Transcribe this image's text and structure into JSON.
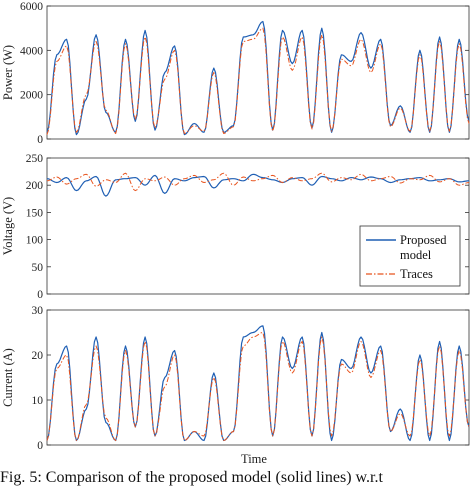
{
  "chart_data": [
    {
      "type": "line",
      "xlabel": "",
      "ylabel": "Power (W)",
      "ylim": [
        0,
        6000
      ],
      "yticks": [
        "0",
        "2000",
        "4000",
        "6000"
      ],
      "grid": false,
      "series": [
        {
          "name": "Proposed model",
          "color": "#1f5fb4",
          "style": "solid",
          "y": [
            300,
            3800,
            4500,
            200,
            1800,
            4700,
            1200,
            300,
            4500,
            800,
            4900,
            400,
            3000,
            4200,
            200,
            700,
            300,
            3200,
            300,
            600,
            4600,
            4700,
            5300,
            400,
            4900,
            3400,
            4900,
            500,
            5000,
            300,
            3800,
            3500,
            4800,
            3200,
            4500,
            600,
            1500,
            300,
            4000,
            300,
            4600,
            300,
            4500,
            800
          ]
        },
        {
          "name": "Traces",
          "color": "#e8541e",
          "style": "dashdot",
          "y": [
            200,
            3500,
            4200,
            300,
            2000,
            4400,
            1300,
            250,
            4300,
            900,
            4600,
            500,
            2700,
            4000,
            250,
            600,
            350,
            3000,
            250,
            550,
            4400,
            4500,
            5000,
            350,
            4600,
            3100,
            4600,
            450,
            4700,
            350,
            3600,
            3300,
            4500,
            3000,
            4300,
            550,
            1400,
            350,
            3800,
            350,
            4400,
            350,
            4300,
            700
          ]
        }
      ]
    },
    {
      "type": "line",
      "xlabel": "",
      "ylabel": "Voltage (V)",
      "ylim": [
        0,
        250
      ],
      "yticks": [
        "0",
        "50",
        "100",
        "150",
        "200",
        "250"
      ],
      "grid": false,
      "legend": {
        "position": "bottom-right",
        "entries": [
          "Proposed model",
          "Traces"
        ]
      },
      "series": [
        {
          "name": "Proposed model",
          "color": "#1f5fb4",
          "style": "solid",
          "y": [
            212,
            205,
            214,
            190,
            208,
            216,
            180,
            210,
            212,
            214,
            200,
            218,
            185,
            212,
            208,
            214,
            216,
            195,
            210,
            212,
            208,
            220,
            214,
            210,
            205,
            212,
            214,
            200,
            216,
            212,
            208,
            214,
            210,
            215,
            212,
            205,
            210,
            212,
            214,
            208,
            210,
            212,
            206,
            208
          ]
        },
        {
          "name": "Traces",
          "color": "#e8541e",
          "style": "dashdot",
          "y": [
            208,
            215,
            202,
            212,
            220,
            198,
            210,
            205,
            222,
            190,
            212,
            208,
            215,
            200,
            212,
            218,
            205,
            210,
            222,
            200,
            215,
            208,
            212,
            218,
            205,
            214,
            208,
            212,
            222,
            206,
            214,
            210,
            220,
            208,
            212,
            216,
            204,
            212,
            210,
            218,
            206,
            212,
            200,
            205
          ]
        }
      ]
    },
    {
      "type": "line",
      "xlabel": "Time",
      "ylabel": "Current (A)",
      "ylim": [
        0,
        30
      ],
      "yticks": [
        "0",
        "10",
        "20",
        "30"
      ],
      "grid": false,
      "series": [
        {
          "name": "Proposed model",
          "color": "#1f5fb4",
          "style": "solid",
          "y": [
            1,
            18,
            22,
            1,
            8,
            24,
            5,
            1,
            22,
            4,
            24,
            2,
            15,
            21,
            1,
            3,
            1,
            16,
            1,
            3,
            24,
            25,
            26.5,
            2,
            24,
            17,
            24,
            2,
            25,
            1,
            19,
            17,
            24,
            16,
            22,
            3,
            8,
            1,
            20,
            1,
            23,
            1,
            22,
            4
          ]
        },
        {
          "name": "Traces",
          "color": "#e8541e",
          "style": "dashdot",
          "y": [
            1,
            17,
            20,
            1,
            9,
            22,
            6,
            1,
            21,
            4,
            23,
            2,
            13,
            20,
            1,
            3,
            2,
            15,
            1,
            3,
            22,
            24,
            25,
            2,
            23,
            16,
            23,
            2,
            24,
            2,
            18,
            16,
            23,
            15,
            21,
            3,
            7,
            2,
            19,
            2,
            22,
            2,
            21,
            4
          ]
        }
      ]
    }
  ],
  "legend": {
    "line1": "Proposed",
    "line2": "model",
    "traces": "Traces"
  },
  "caption": "Fig. 5: Comparison of the proposed model (solid lines) w.r.t"
}
